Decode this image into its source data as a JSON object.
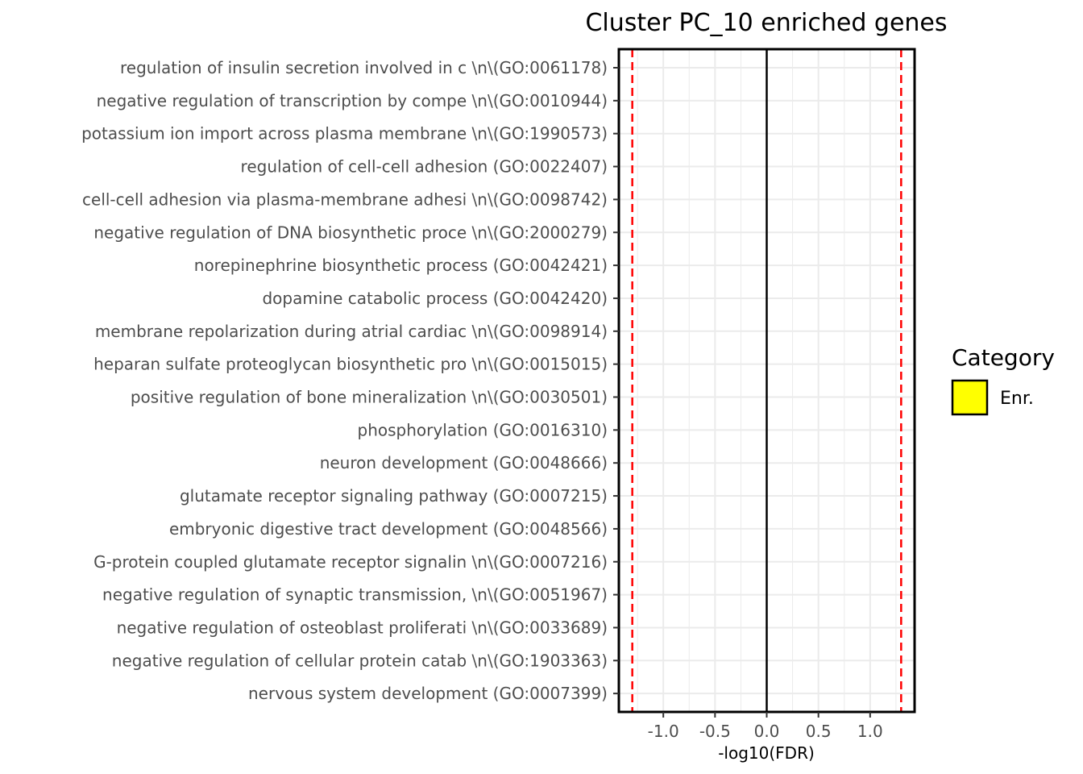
{
  "chart_data": {
    "type": "bar",
    "title": "Cluster PC_10 enriched genes",
    "xlabel": "-log10(FDR)",
    "ylabel": "",
    "categories": [
      "regulation of insulin secretion involved in c \\n\\(GO:0061178)",
      "negative regulation of transcription by compe \\n\\(GO:0010944)",
      "potassium ion import across plasma membrane  \\n\\(GO:1990573)",
      "regulation of cell-cell adhesion (GO:0022407)",
      "cell-cell adhesion via plasma-membrane adhesi \\n\\(GO:0098742)",
      "negative regulation of DNA biosynthetic proce \\n\\(GO:2000279)",
      "norepinephrine biosynthetic process (GO:0042421)",
      "dopamine catabolic process (GO:0042420)",
      "membrane repolarization during atrial cardiac \\n\\(GO:0098914)",
      "heparan sulfate proteoglycan biosynthetic pro \\n\\(GO:0015015)",
      "positive regulation of bone mineralization  \\n\\(GO:0030501)",
      "phosphorylation (GO:0016310)",
      "neuron development (GO:0048666)",
      "glutamate receptor signaling pathway (GO:0007215)",
      "embryonic digestive tract development (GO:0048566)",
      "G-protein coupled glutamate receptor signalin \\n\\(GO:0007216)",
      "negative regulation of synaptic transmission, \\n\\(GO:0051967)",
      "negative regulation of osteoblast proliferati \\n\\(GO:0033689)",
      "negative regulation of cellular protein catab \\n\\(GO:1903363)",
      "nervous system development (GO:0007399)"
    ],
    "series": [
      {
        "name": "Enr.",
        "color": "#ffff00",
        "values": [
          0,
          0,
          0,
          0,
          0,
          0,
          0,
          0,
          0,
          0,
          0,
          0,
          0,
          0,
          0,
          0,
          0,
          0,
          0,
          0
        ]
      }
    ],
    "xlim": [
      -1.43,
      1.43
    ],
    "xticks": [
      -1.0,
      -0.5,
      0.0,
      0.5,
      1.0
    ],
    "xtick_labels": [
      "-1.0",
      "-0.5",
      "0.0",
      "0.5",
      "1.0"
    ],
    "reference_lines": [
      {
        "x": -1.3,
        "style": "dashed",
        "color": "#ff0000"
      },
      {
        "x": 1.3,
        "style": "dashed",
        "color": "#ff0000"
      },
      {
        "x": 0,
        "style": "solid",
        "color": "#000000"
      }
    ],
    "grid": true,
    "legend": {
      "title": "Category",
      "position": "right",
      "items": [
        {
          "label": "Enr.",
          "color": "#ffff00"
        }
      ]
    }
  }
}
